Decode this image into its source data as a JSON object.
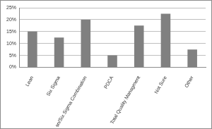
{
  "chart_data": {
    "type": "bar",
    "categories": [
      "Lean",
      "Six Sigma",
      "Lean/Six Sigma Combination",
      "PDCA",
      "Total Quality Managment",
      "Not Sure",
      "Other"
    ],
    "values": [
      15,
      12.5,
      20,
      5,
      17.5,
      22.5,
      7.5
    ],
    "color": "#808080",
    "ylim": [
      0,
      25
    ],
    "yticks": [
      {
        "value": 0,
        "label": "0%"
      },
      {
        "value": 5,
        "label": "5%"
      },
      {
        "value": 10,
        "label": "10%"
      },
      {
        "value": 15,
        "label": "15%"
      },
      {
        "value": 20,
        "label": "20%"
      },
      {
        "value": 25,
        "label": "25%"
      }
    ],
    "grid": true
  }
}
